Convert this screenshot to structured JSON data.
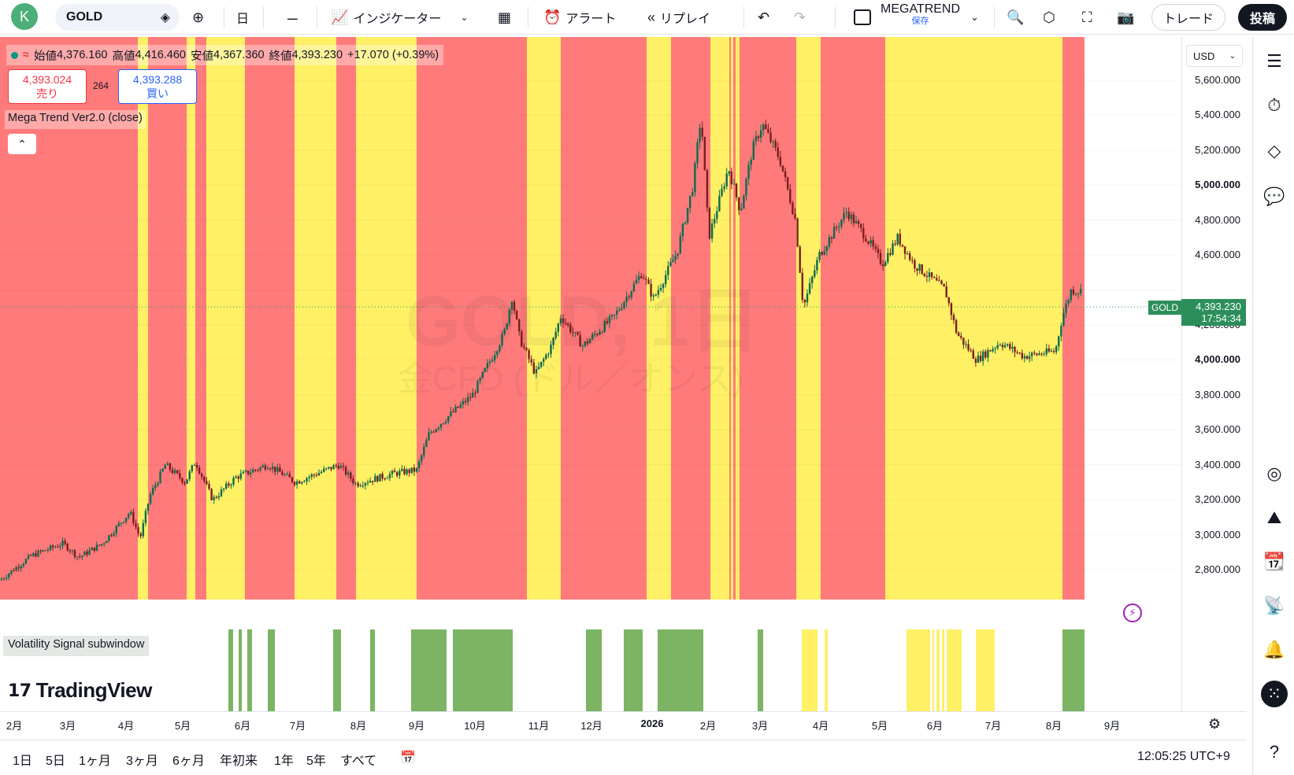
{
  "topbar": {
    "avatar_letter": "K",
    "symbol": "GOLD",
    "interval": "日",
    "indicators_label": "インジケーター",
    "alert_label": "アラート",
    "replay_label": "リプレイ",
    "layout_name": "MEGATREND",
    "layout_status": "保存",
    "trade_label": "トレード",
    "post_label": "投稿"
  },
  "legend": {
    "open_label": "始値",
    "open": "4,376.160",
    "high_label": "高値",
    "high": "4,416.460",
    "low_label": "安値",
    "low": "4,367.360",
    "close_label": "終値",
    "close": "4,393.230",
    "change": "+17.070 (+0.39%)"
  },
  "bid": {
    "price": "4,393.024",
    "label": "売り"
  },
  "ask": {
    "price": "4,393.288",
    "label": "買い"
  },
  "spread": "264",
  "indicator_label": "Mega Trend Ver2.0 (close)",
  "subwindow_label": "Volatility Signal subwindow",
  "watermark": {
    "symbol": "GOLD, 1日",
    "desc": "金CFD (ドル／オンス)"
  },
  "logo_text": "TradingView",
  "currency": "USD",
  "current_price": {
    "label": "GOLD",
    "price": "4,393.230",
    "countdown": "17:54:34"
  },
  "price_ticks": [
    "5,600.000",
    "5,400.000",
    "5,200.000",
    "5,000.000",
    "4,800.000",
    "4,600.000",
    "4,200.000",
    "4,000.000",
    "3,800.000",
    "3,600.000",
    "3,400.000",
    "3,200.000",
    "3,000.000",
    "2,800.000"
  ],
  "time_ticks": [
    "2月",
    "3月",
    "4月",
    "5月",
    "6月",
    "7月",
    "8月",
    "9月",
    "10月",
    "11月",
    "12月",
    "2026",
    "2月",
    "3月",
    "4月",
    "5月",
    "6月",
    "7月",
    "8月",
    "9月"
  ],
  "timeframes": [
    "1日",
    "5日",
    "1ヶ月",
    "3ヶ月",
    "6ヶ月",
    "年初来",
    "1年",
    "5年",
    "すべて"
  ],
  "clock": "12:05:25 UTC+9",
  "colors": {
    "red_zone": "#ff7b7b",
    "yellow_zone": "#fff066",
    "green_signal": "#7cb464",
    "up": "#089981",
    "down": "#f23645"
  }
}
